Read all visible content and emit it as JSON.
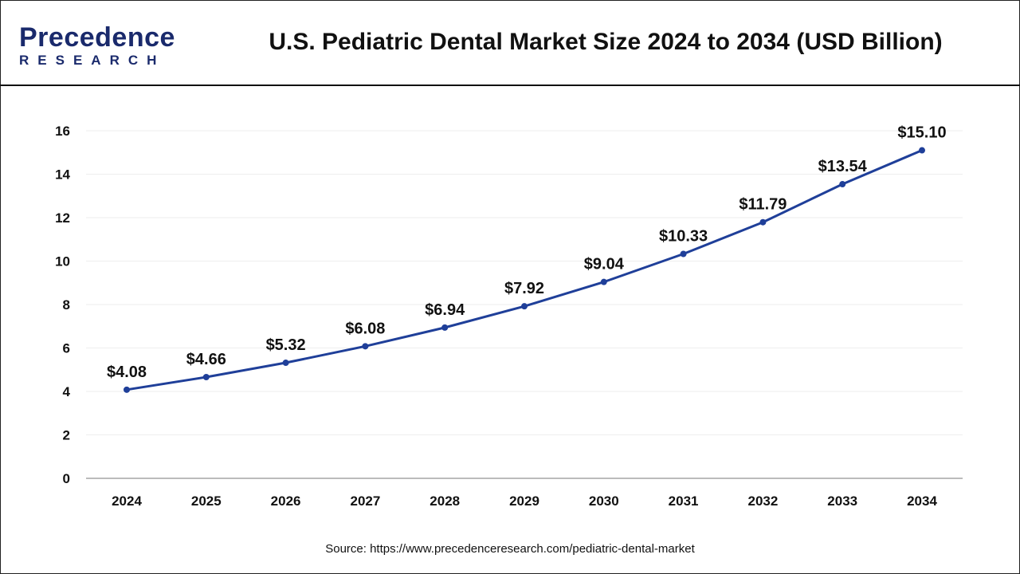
{
  "header": {
    "logo_text": "Precedence",
    "logo_subtext": "RESEARCH",
    "title": "U.S. Pediatric Dental Market Size 2024 to 2034 (USD Billion)"
  },
  "source": "Source: https://www.precedenceresearch.com/pediatric-dental-market",
  "chart_data": {
    "type": "line",
    "title": "U.S. Pediatric Dental Market Size 2024 to 2034 (USD Billion)",
    "categories": [
      "2024",
      "2025",
      "2026",
      "2027",
      "2028",
      "2029",
      "2030",
      "2031",
      "2032",
      "2033",
      "2034"
    ],
    "values": [
      4.08,
      4.66,
      5.32,
      6.08,
      6.94,
      7.92,
      9.04,
      10.33,
      11.79,
      13.54,
      15.1
    ],
    "data_labels": [
      "$4.08",
      "$4.66",
      "$5.32",
      "$6.08",
      "$6.94",
      "$7.92",
      "$9.04",
      "$10.33",
      "$11.79",
      "$13.54",
      "$15.10"
    ],
    "ylim": [
      0,
      16
    ],
    "yticks": [
      "0",
      "2",
      "4",
      "6",
      "8",
      "10",
      "12",
      "14",
      "16"
    ],
    "grid": true,
    "line_color": "#1f3f99"
  }
}
